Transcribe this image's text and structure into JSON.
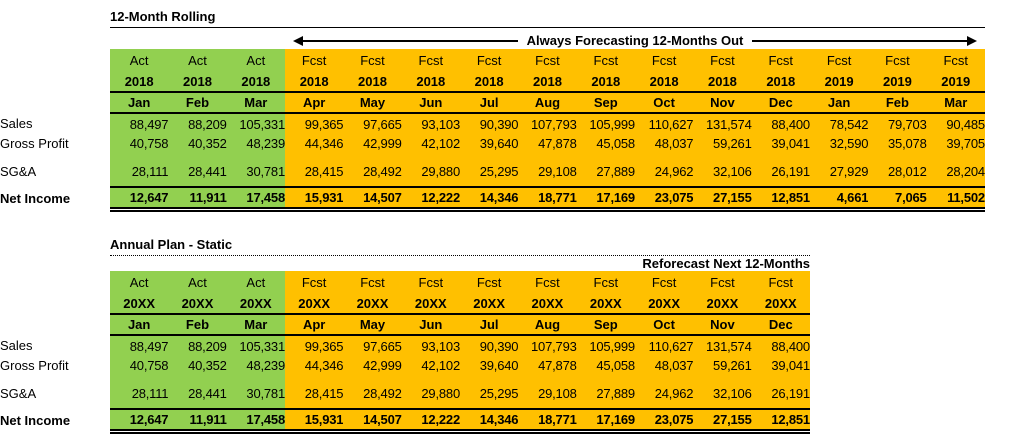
{
  "colors": {
    "actual_fill": "#92D050",
    "forecast_fill": "#FFC000",
    "border": "#000000",
    "text": "#000000",
    "background": "#FFFFFF"
  },
  "tables": [
    {
      "id": "rolling",
      "title": "12-Month Rolling",
      "arrow_label": "Always Forecasting 12-Months Out",
      "columns": [
        {
          "type": "Act",
          "year": "2018",
          "month": "Jan"
        },
        {
          "type": "Act",
          "year": "2018",
          "month": "Feb"
        },
        {
          "type": "Act",
          "year": "2018",
          "month": "Mar"
        },
        {
          "type": "Fcst",
          "year": "2018",
          "month": "Apr"
        },
        {
          "type": "Fcst",
          "year": "2018",
          "month": "May"
        },
        {
          "type": "Fcst",
          "year": "2018",
          "month": "Jun"
        },
        {
          "type": "Fcst",
          "year": "2018",
          "month": "Jul"
        },
        {
          "type": "Fcst",
          "year": "2018",
          "month": "Aug"
        },
        {
          "type": "Fcst",
          "year": "2018",
          "month": "Sep"
        },
        {
          "type": "Fcst",
          "year": "2018",
          "month": "Oct"
        },
        {
          "type": "Fcst",
          "year": "2018",
          "month": "Nov"
        },
        {
          "type": "Fcst",
          "year": "2018",
          "month": "Dec"
        },
        {
          "type": "Fcst",
          "year": "2019",
          "month": "Jan"
        },
        {
          "type": "Fcst",
          "year": "2019",
          "month": "Feb"
        },
        {
          "type": "Fcst",
          "year": "2019",
          "month": "Mar"
        }
      ],
      "rows": [
        {
          "label": "Sales",
          "values": [
            "88,497",
            "88,209",
            "105,331",
            "99,365",
            "97,665",
            "93,103",
            "90,390",
            "107,793",
            "105,999",
            "110,627",
            "131,574",
            "88,400",
            "78,542",
            "79,703",
            "90,485"
          ]
        },
        {
          "label": "Gross Profit",
          "values": [
            "40,758",
            "40,352",
            "48,239",
            "44,346",
            "42,999",
            "42,102",
            "39,640",
            "47,878",
            "45,058",
            "48,037",
            "59,261",
            "39,041",
            "32,590",
            "35,078",
            "39,705"
          ]
        },
        {
          "label": "SG&A",
          "values": [
            "28,111",
            "28,441",
            "30,781",
            "28,415",
            "28,492",
            "29,880",
            "25,295",
            "29,108",
            "27,889",
            "24,962",
            "32,106",
            "26,191",
            "27,929",
            "28,012",
            "28,204"
          ]
        },
        {
          "label": "Net Income",
          "values": [
            "12,647",
            "11,911",
            "17,458",
            "15,931",
            "14,507",
            "12,222",
            "14,346",
            "18,771",
            "17,169",
            "23,075",
            "27,155",
            "12,851",
            "4,661",
            "7,065",
            "11,502"
          ]
        }
      ]
    },
    {
      "id": "static",
      "title": "Annual Plan - Static",
      "annotation": "Reforecast Next 12-Months",
      "columns": [
        {
          "type": "Act",
          "year": "20XX",
          "month": "Jan"
        },
        {
          "type": "Act",
          "year": "20XX",
          "month": "Feb"
        },
        {
          "type": "Act",
          "year": "20XX",
          "month": "Mar"
        },
        {
          "type": "Fcst",
          "year": "20XX",
          "month": "Apr"
        },
        {
          "type": "Fcst",
          "year": "20XX",
          "month": "May"
        },
        {
          "type": "Fcst",
          "year": "20XX",
          "month": "Jun"
        },
        {
          "type": "Fcst",
          "year": "20XX",
          "month": "Jul"
        },
        {
          "type": "Fcst",
          "year": "20XX",
          "month": "Aug"
        },
        {
          "type": "Fcst",
          "year": "20XX",
          "month": "Sep"
        },
        {
          "type": "Fcst",
          "year": "20XX",
          "month": "Oct"
        },
        {
          "type": "Fcst",
          "year": "20XX",
          "month": "Nov"
        },
        {
          "type": "Fcst",
          "year": "20XX",
          "month": "Dec"
        }
      ],
      "rows": [
        {
          "label": "Sales",
          "values": [
            "88,497",
            "88,209",
            "105,331",
            "99,365",
            "97,665",
            "93,103",
            "90,390",
            "107,793",
            "105,999",
            "110,627",
            "131,574",
            "88,400"
          ]
        },
        {
          "label": "Gross Profit",
          "values": [
            "40,758",
            "40,352",
            "48,239",
            "44,346",
            "42,999",
            "42,102",
            "39,640",
            "47,878",
            "45,058",
            "48,037",
            "59,261",
            "39,041"
          ]
        },
        {
          "label": "SG&A",
          "values": [
            "28,111",
            "28,441",
            "30,781",
            "28,415",
            "28,492",
            "29,880",
            "25,295",
            "29,108",
            "27,889",
            "24,962",
            "32,106",
            "26,191"
          ]
        },
        {
          "label": "Net Income",
          "values": [
            "12,647",
            "11,911",
            "17,458",
            "15,931",
            "14,507",
            "12,222",
            "14,346",
            "18,771",
            "17,169",
            "23,075",
            "27,155",
            "12,851"
          ]
        }
      ]
    }
  ]
}
